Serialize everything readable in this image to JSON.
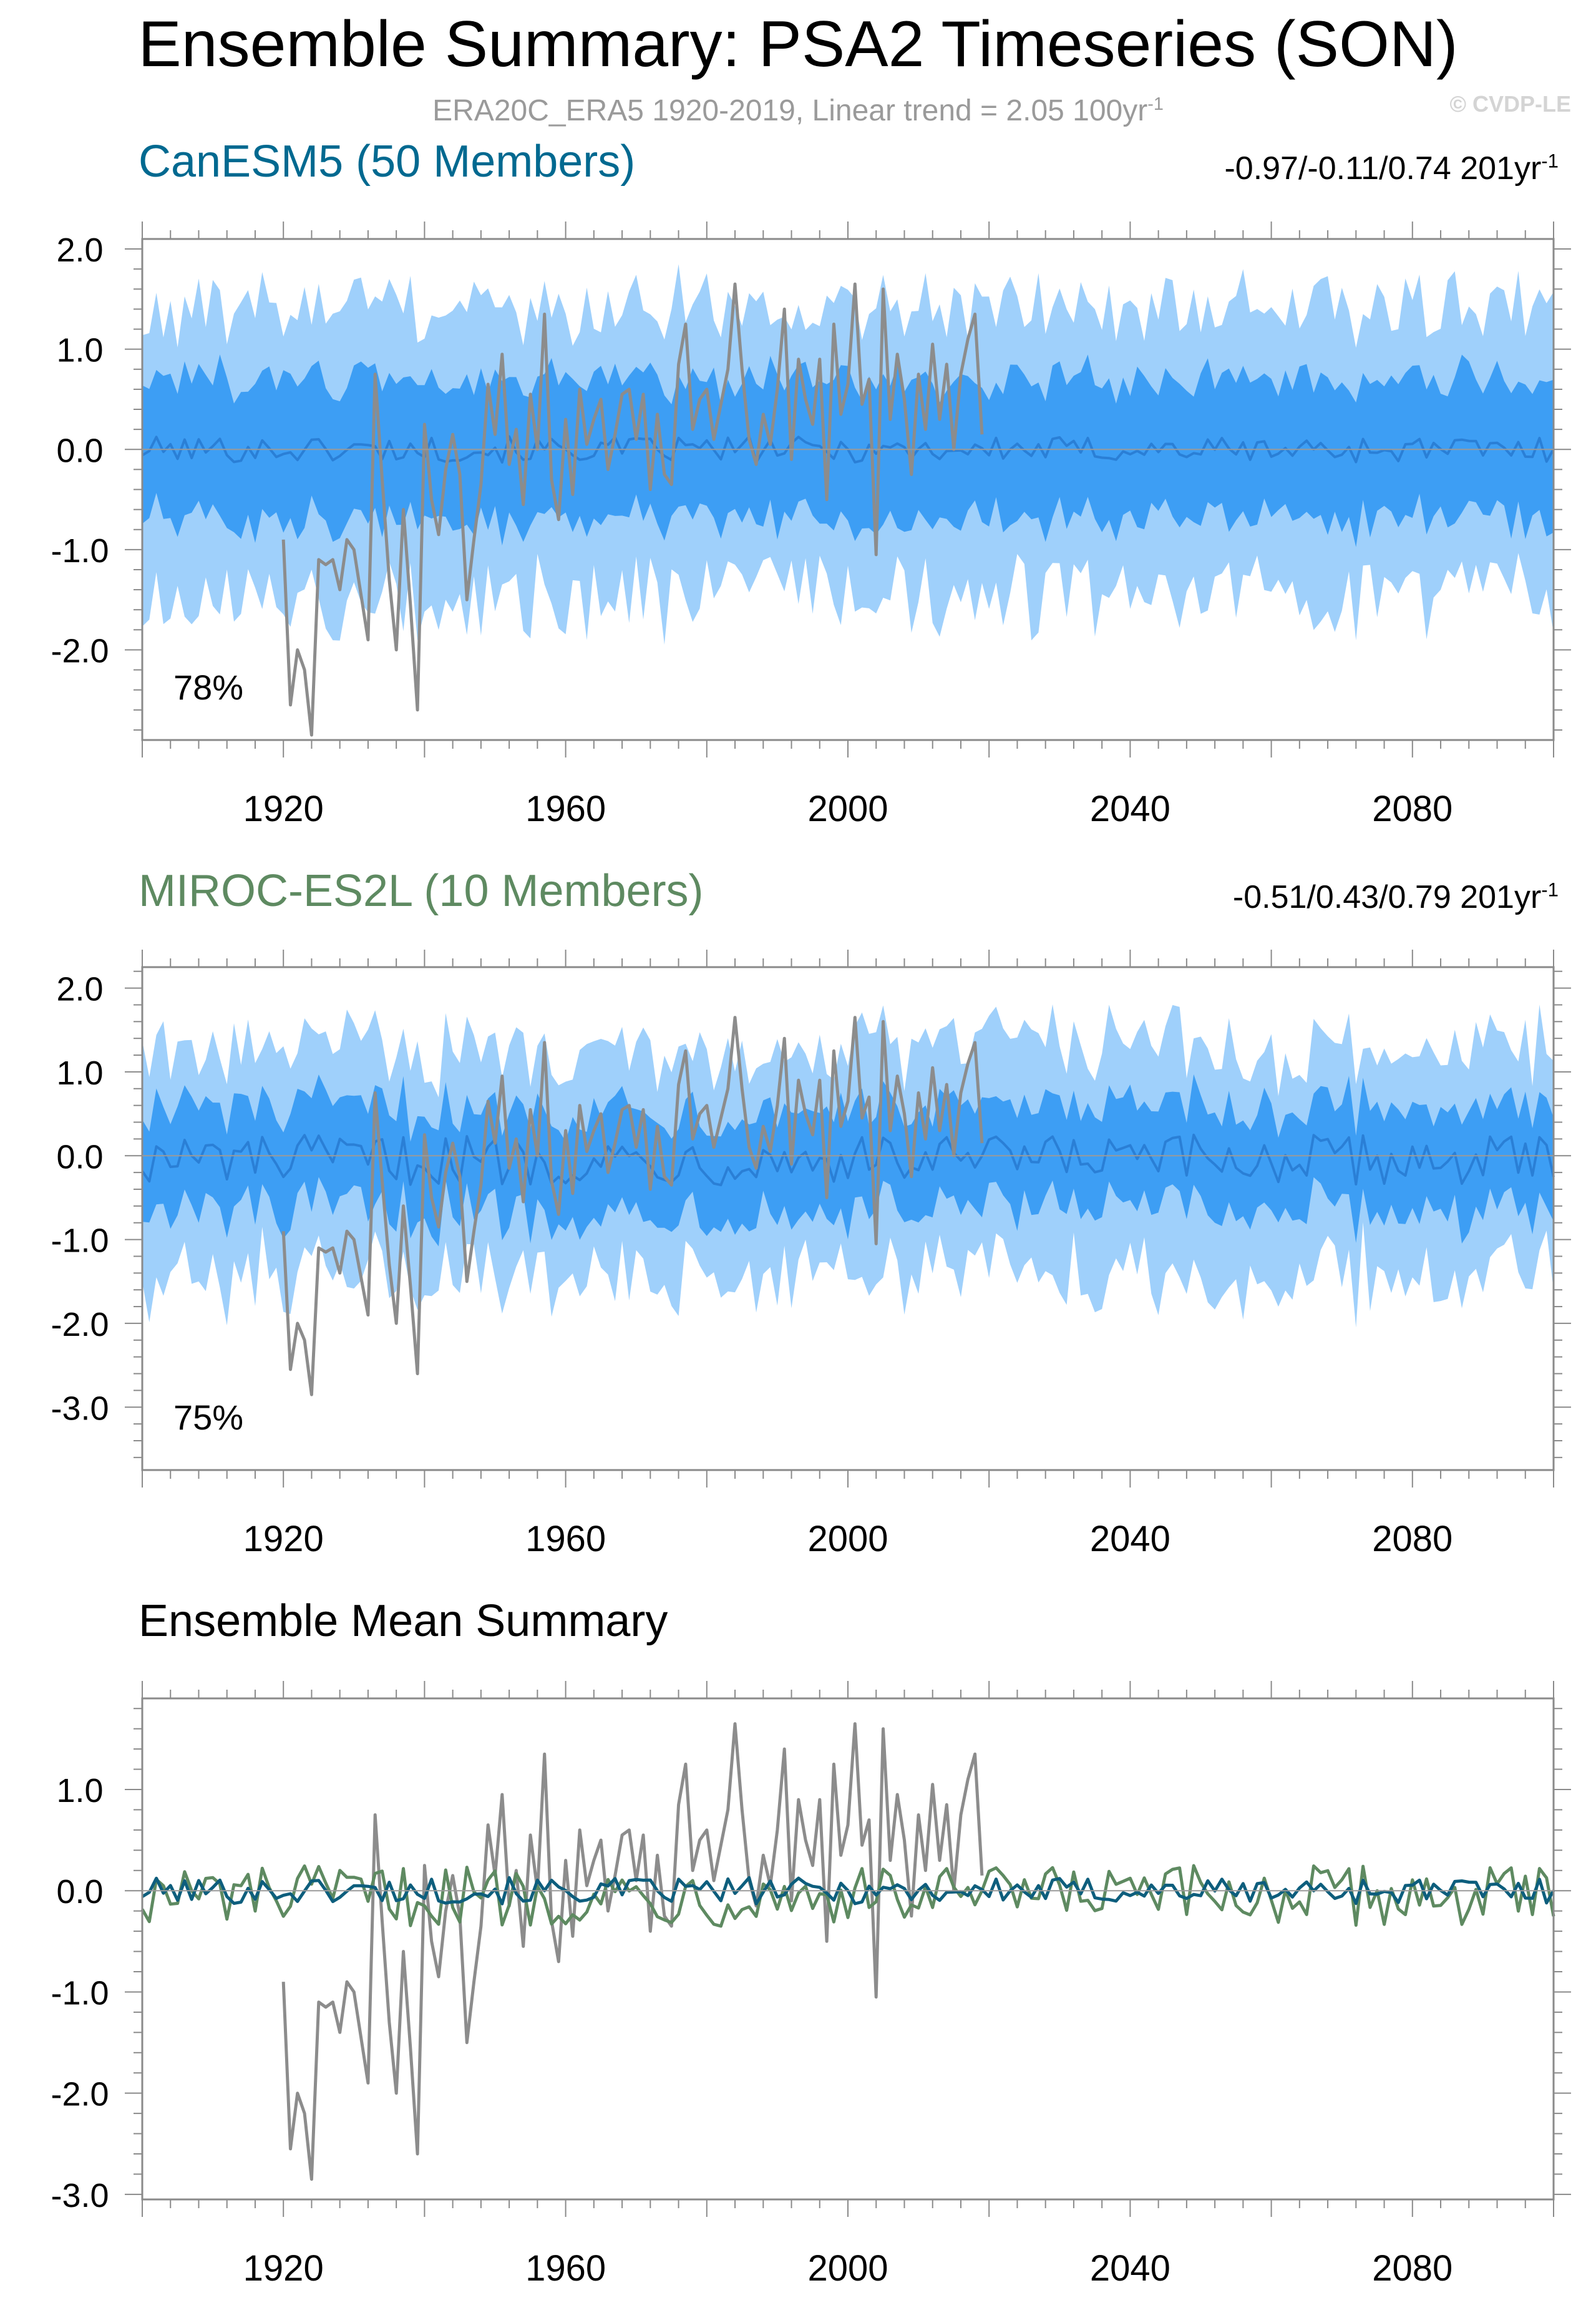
{
  "figure": {
    "title": "Ensemble Summary: PSA2 Timeseries (SON)",
    "subtitle_main": "ERA20C_ERA5 1920-2019, Linear trend = 2.05 100yr",
    "subtitle_sup": "-1",
    "copyright": "© CVDP-LE"
  },
  "colors": {
    "band_outer": "#9fd0fb",
    "band_inner": "#3d9ef4",
    "mean_canesm": "#2a7fd6",
    "obs": "#8c8c8c",
    "canesm_title": "#006990",
    "miroc_title": "#5e8a61",
    "line_canesm": "#0d5e7d",
    "line_miroc": "#5e8a61"
  },
  "panels": [
    {
      "title": "CanESM5 (50 Members)",
      "trend_main": "-0.97/-0.11/0.74 201yr",
      "trend_sup": "-1",
      "percent": "78%"
    },
    {
      "title": "MIROC-ES2L (10 Members)",
      "trend_main": "-0.51/0.43/0.79 201yr",
      "trend_sup": "-1",
      "percent": "75%"
    },
    {
      "title": "Ensemble Mean Summary"
    }
  ],
  "chart_data": [
    {
      "type": "area",
      "panel": "CanESM5 (50 Members)",
      "x_range": [
        1900,
        2100
      ],
      "ylim": [
        -2.9,
        2.1
      ],
      "yticks": [
        "2.0",
        "1.0",
        "0.0",
        "-1.0",
        "-2.0"
      ],
      "xticks": [
        "1920",
        "1960",
        "2000",
        "2040",
        "2080"
      ],
      "obs_period": [
        1920,
        2019
      ],
      "ensemble_mean_level": 0.0,
      "ensemble_mean_noise": 0.13,
      "inner_band_halfwidth": 0.68,
      "outer_band_halfwidth": 1.45,
      "annotation": "78%"
    },
    {
      "type": "area",
      "panel": "MIROC-ES2L (10 Members)",
      "x_range": [
        1900,
        2100
      ],
      "ylim": [
        -3.75,
        2.25
      ],
      "yticks": [
        "2.0",
        "1.0",
        "0.0",
        "-1.0",
        "-2.0",
        "-3.0"
      ],
      "xticks": [
        "1920",
        "1960",
        "2000",
        "2040",
        "2080"
      ],
      "obs_period": [
        1920,
        2019
      ],
      "ensemble_mean_level": -0.05,
      "ensemble_mean_noise": 0.3,
      "inner_band_halfwidth": 0.6,
      "outer_band_halfwidth": 1.35,
      "annotation": "75%"
    },
    {
      "type": "line",
      "panel": "Ensemble Mean Summary",
      "x_range": [
        1900,
        2100
      ],
      "ylim": [
        -3.05,
        1.9
      ],
      "yticks": [
        "1.0",
        "0.0",
        "-1.0",
        "-2.0",
        "-3.0"
      ],
      "xticks": [
        "1920",
        "1960",
        "2000",
        "2040",
        "2080"
      ],
      "series": [
        {
          "color_key": "line_canesm",
          "level": 0.0,
          "noise": 0.13
        },
        {
          "color_key": "line_miroc",
          "level": -0.05,
          "noise": 0.3
        },
        {
          "color_key": "obs"
        }
      ]
    }
  ],
  "obs_series": {
    "start_year": 1920,
    "values": [
      -0.9,
      -2.55,
      -2.0,
      -2.2,
      -2.85,
      -1.1,
      -1.15,
      -1.1,
      -1.4,
      -0.9,
      -1.0,
      -1.45,
      -1.9,
      0.75,
      -0.3,
      -1.3,
      -2.0,
      -0.6,
      -1.55,
      -2.6,
      0.25,
      -0.5,
      -0.85,
      -0.2,
      0.15,
      -0.25,
      -1.5,
      -0.9,
      -0.35,
      0.65,
      0.15,
      0.95,
      -0.15,
      0.2,
      -0.55,
      0.55,
      0.0,
      1.35,
      -0.3,
      -0.7,
      0.3,
      -0.45,
      0.6,
      0.05,
      0.3,
      0.5,
      -0.2,
      0.15,
      0.55,
      0.6,
      0.1,
      0.55,
      -0.4,
      0.35,
      -0.25,
      -0.35,
      0.85,
      1.25,
      0.2,
      0.5,
      0.6,
      0.1,
      0.45,
      0.8,
      1.65,
      0.8,
      0.1,
      -0.15,
      0.35,
      0.05,
      0.6,
      1.4,
      -0.1,
      0.9,
      0.5,
      0.25,
      0.9,
      -0.5,
      1.25,
      0.35,
      0.65,
      1.65,
      0.45,
      0.7,
      -1.05,
      1.6,
      0.3,
      0.95,
      0.5,
      -0.25,
      0.75,
      0.2,
      1.05,
      0.3,
      0.85,
      0.0,
      0.75,
      1.1,
      1.35,
      0.15
    ]
  }
}
